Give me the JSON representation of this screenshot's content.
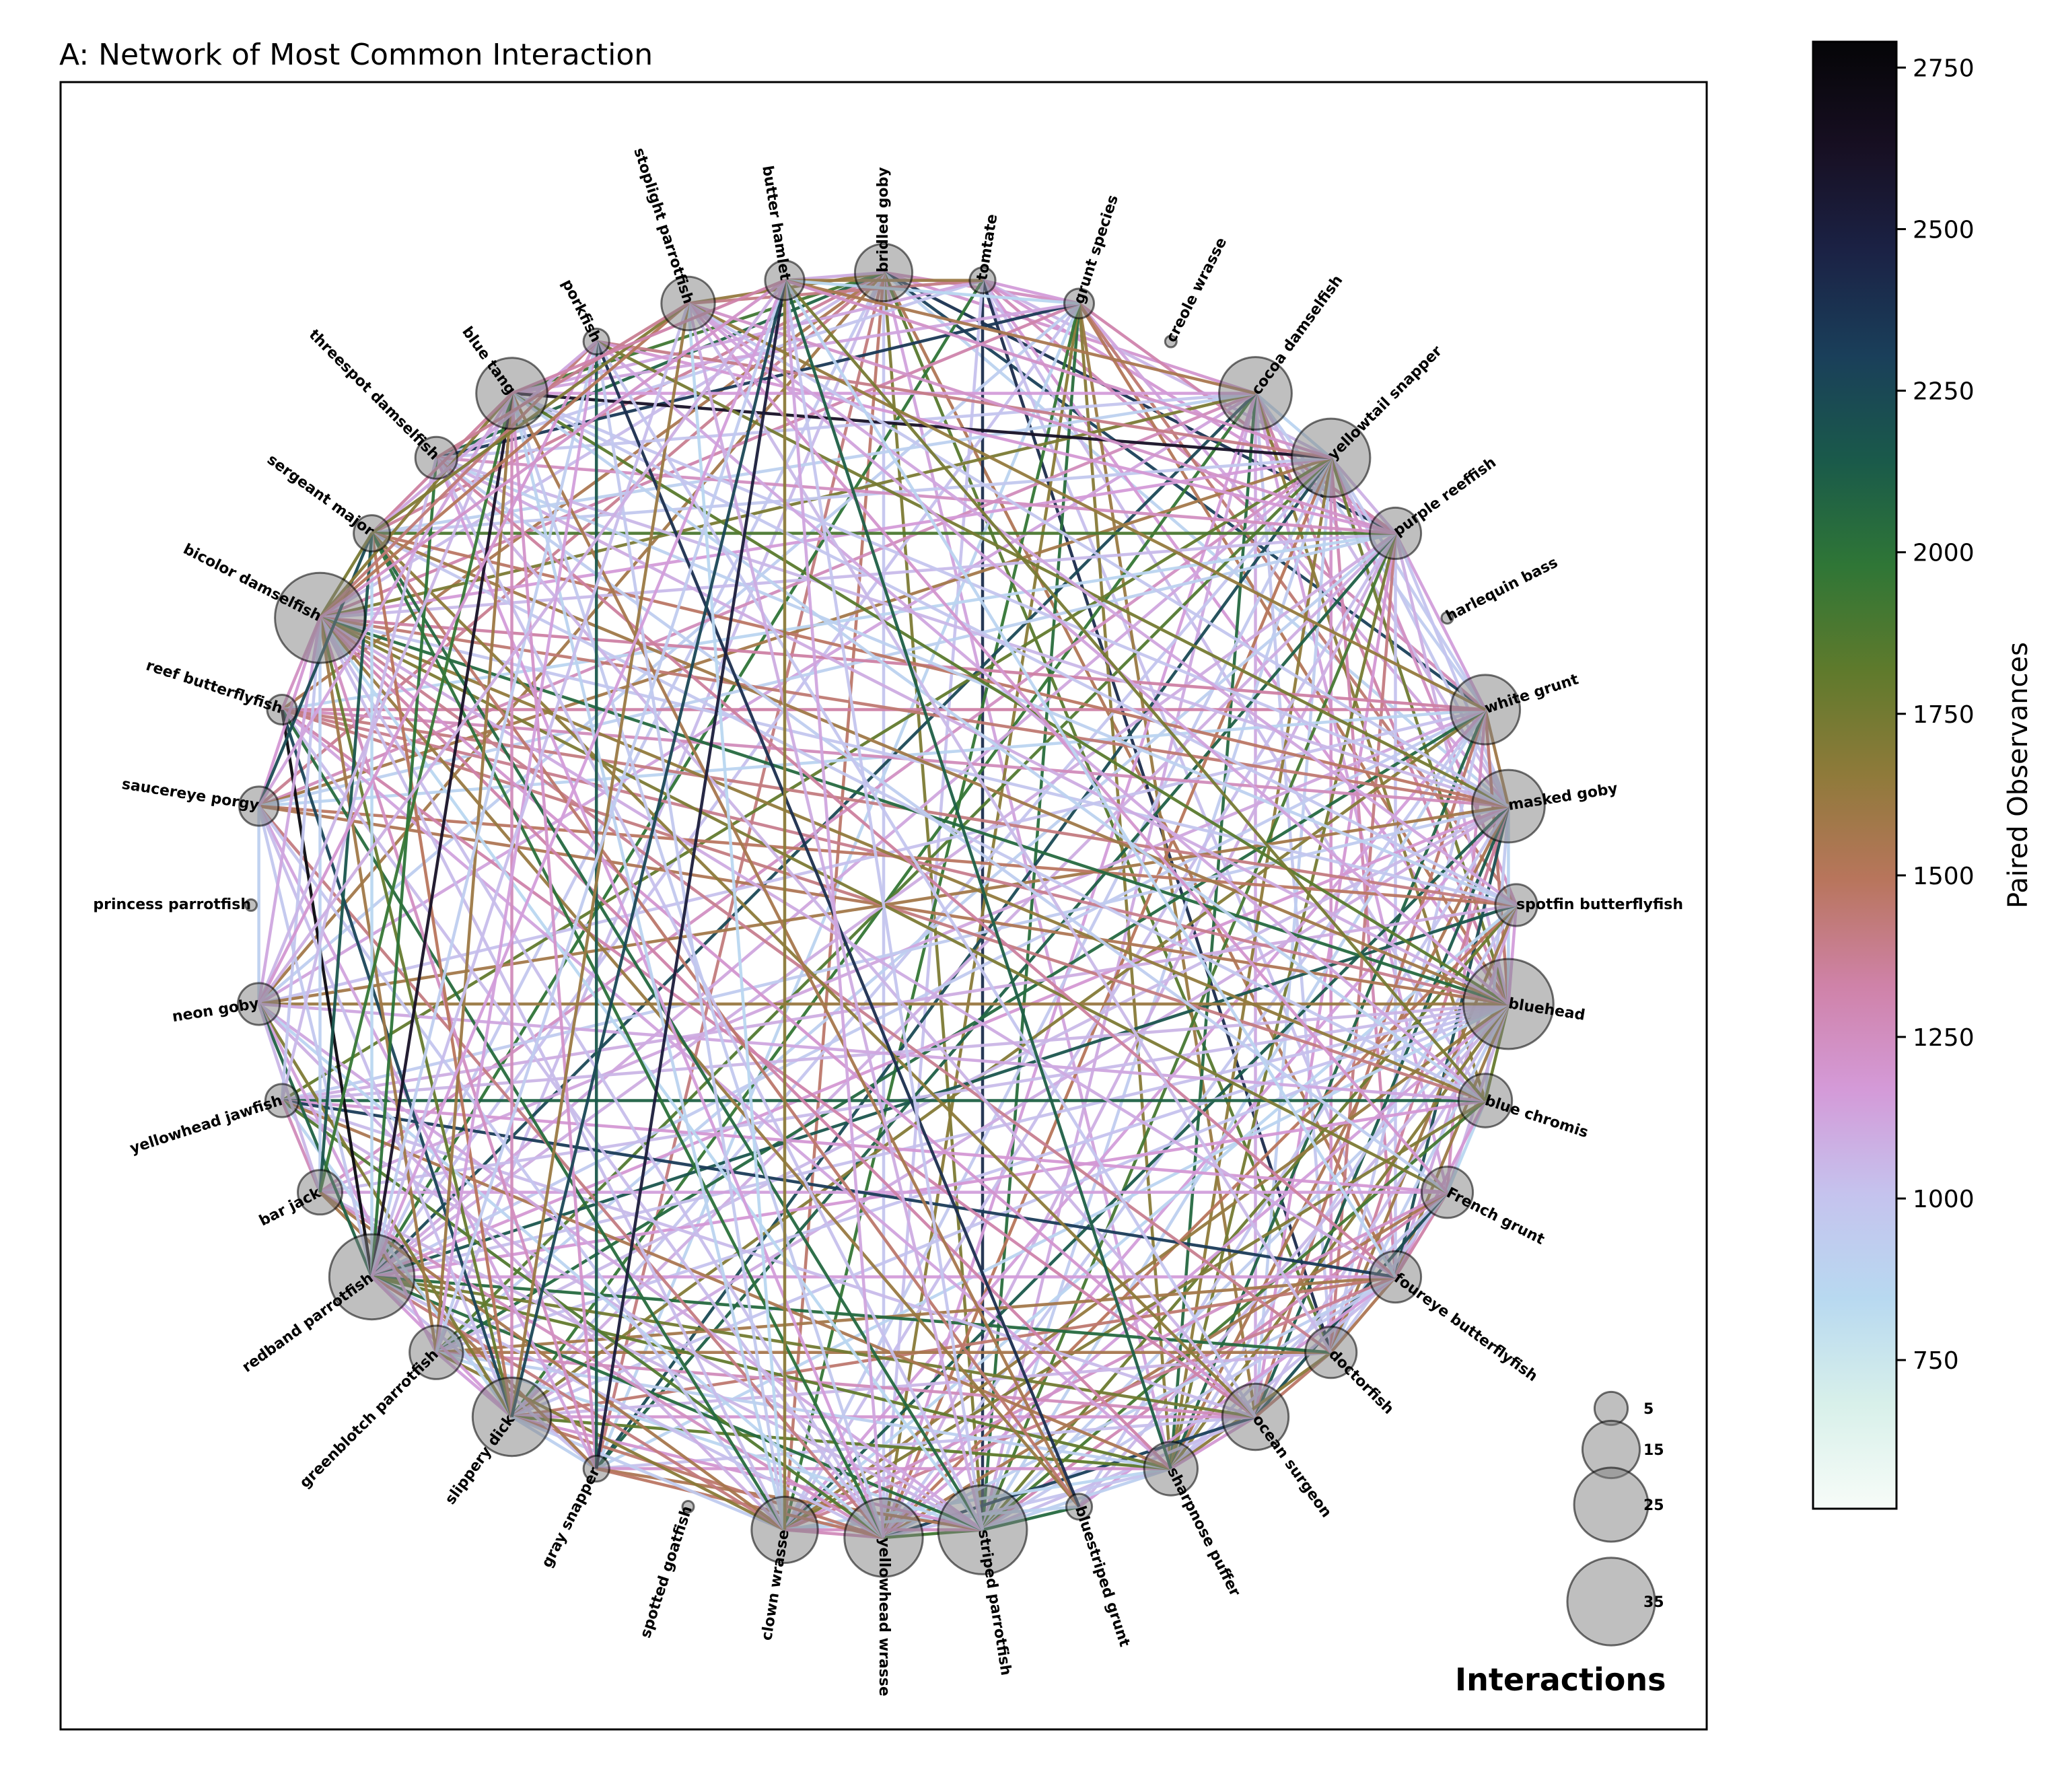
{
  "title": "A: Network of Most Common Interaction",
  "colorbar": {
    "label": "Paired Observances",
    "min": 520,
    "max": 2790,
    "ticks": [
      "750",
      "1000",
      "1250",
      "1500",
      "1750",
      "2000",
      "2250",
      "2500",
      "2750"
    ],
    "tick_values": [
      750,
      1000,
      1250,
      1500,
      1750,
      2000,
      2250,
      2500,
      2750
    ],
    "colormap": "cubehelix_r",
    "stops": [
      "#f7fcf8",
      "#d8f0ea",
      "#b8d9f0",
      "#c5c3ee",
      "#d49ad8",
      "#cf82a8",
      "#b8755c",
      "#8f7a3a",
      "#5f7a2c",
      "#2f7636",
      "#1a5a4a",
      "#1a3f5a",
      "#1b2245",
      "#170f22",
      "#050507"
    ]
  },
  "legend": {
    "title": "Interactions",
    "sizes": [
      {
        "label": "5",
        "value": 5
      },
      {
        "label": "15",
        "value": 15
      },
      {
        "label": "25",
        "value": 25
      },
      {
        "label": "35",
        "value": 35
      }
    ]
  },
  "nodes": [
    {
      "name": "bridled goby",
      "size": 15
    },
    {
      "name": "tomtate",
      "size": 3
    },
    {
      "name": "grunt species",
      "size": 4
    },
    {
      "name": "creole wrasse",
      "size": 0.6
    },
    {
      "name": "cocoa damselfish",
      "size": 24
    },
    {
      "name": "yellowtail snapper",
      "size": 28
    },
    {
      "name": "purple reeffish",
      "size": 12
    },
    {
      "name": "harlequin bass",
      "size": 0.6
    },
    {
      "name": "white grunt",
      "size": 22
    },
    {
      "name": "masked goby",
      "size": 24
    },
    {
      "name": "spotfin butterflyfish",
      "size": 8
    },
    {
      "name": "bluehead",
      "size": 37
    },
    {
      "name": "blue chromis",
      "size": 13
    },
    {
      "name": "French grunt",
      "size": 12
    },
    {
      "name": "foureye butterflyfish",
      "size": 12
    },
    {
      "name": "doctorfish",
      "size": 12
    },
    {
      "name": "ocean surgeon",
      "size": 20
    },
    {
      "name": "sharpnose puffer",
      "size": 13
    },
    {
      "name": "bluestriped grunt",
      "size": 3
    },
    {
      "name": "striped parrotfish",
      "size": 36
    },
    {
      "name": "yellowhead wrasse",
      "size": 28
    },
    {
      "name": "clown wrasse",
      "size": 20
    },
    {
      "name": "spotted goatfish",
      "size": 0.6
    },
    {
      "name": "gray snapper",
      "size": 3
    },
    {
      "name": "slippery dick",
      "size": 28
    },
    {
      "name": "greenblotch parrotfish",
      "size": 13
    },
    {
      "name": "redband parrotfish",
      "size": 33
    },
    {
      "name": "bar jack",
      "size": 9
    },
    {
      "name": "yellowhead jawfish",
      "size": 5
    },
    {
      "name": "neon goby",
      "size": 8
    },
    {
      "name": "princess parrotfish",
      "size": 0.6
    },
    {
      "name": "saucereye porgy",
      "size": 7
    },
    {
      "name": "reef butterflyfish",
      "size": 4
    },
    {
      "name": "bicolor damselfish",
      "size": 37
    },
    {
      "name": "sergeant major",
      "size": 6
    },
    {
      "name": "threespot damselfish",
      "size": 8
    },
    {
      "name": "blue tang",
      "size": 23
    },
    {
      "name": "porkfish",
      "size": 3
    },
    {
      "name": "stoplight parrotfish",
      "size": 13
    },
    {
      "name": "butter hamlet",
      "size": 7
    }
  ]
}
